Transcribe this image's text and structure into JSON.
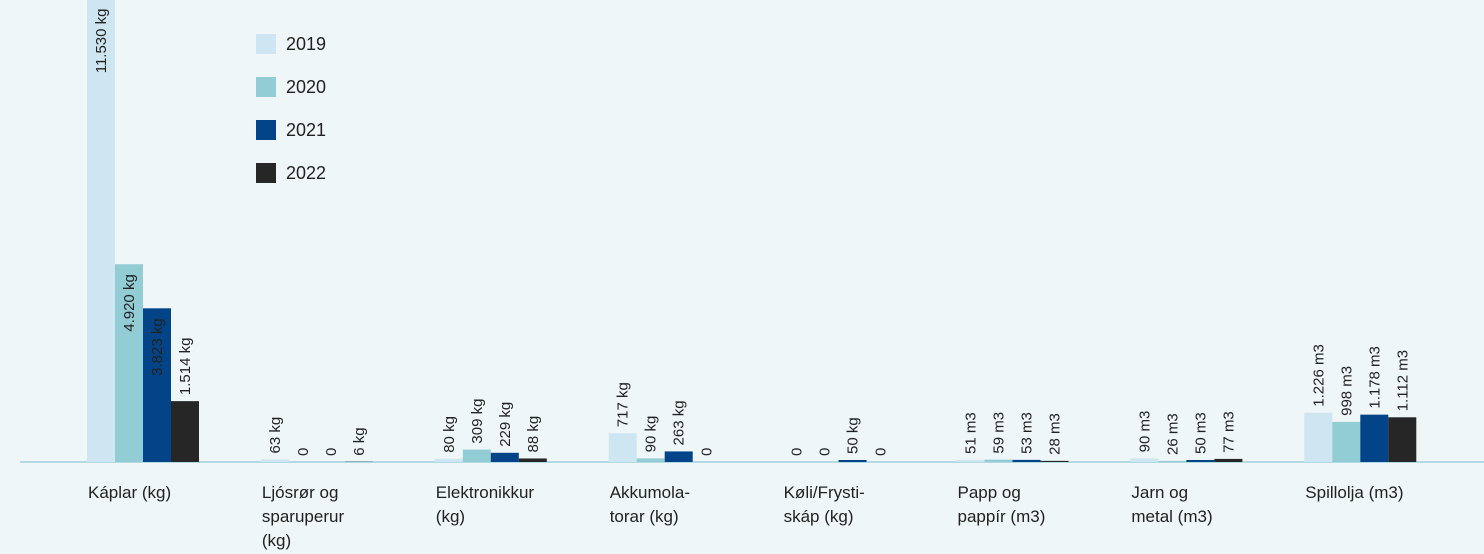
{
  "chart_data": {
    "type": "bar",
    "categories": [
      "Káplar (kg)",
      "Ljósrør og\nsparuperur\n(kg)",
      "Elektronikkur\n(kg)",
      "Akkumola-\ntorar (kg)",
      "Køli/Frysti-\nskáp (kg)",
      "Papp og\npappír (m3)",
      "Jarn og\nmetal (m3)",
      "Spillolja (m3)"
    ],
    "series": [
      {
        "name": "2019",
        "color": "#cde6f2",
        "values": [
          11530,
          63,
          80,
          717,
          0,
          51,
          90,
          1226
        ],
        "value_labels": [
          "11.530 kg",
          "63 kg",
          "80 kg",
          "717 kg",
          "0",
          "51 m3",
          "90 m3",
          "1.226 m3"
        ]
      },
      {
        "name": "2020",
        "color": "#92cdd6",
        "values": [
          4920,
          0,
          309,
          90,
          0,
          59,
          26,
          998
        ],
        "value_labels": [
          "4.920 kg",
          "0",
          "309 kg",
          "90 kg",
          "0",
          "59 m3",
          "26 m3",
          "998 m3"
        ]
      },
      {
        "name": "2021",
        "color": "#034488",
        "values": [
          3823,
          0,
          229,
          263,
          50,
          53,
          50,
          1178
        ],
        "value_labels": [
          "3.823 kg",
          "0",
          "229 kg",
          "263 kg",
          "50 kg",
          "53 m3",
          "50 m3",
          "1.178 m3"
        ]
      },
      {
        "name": "2022",
        "color": "#262626",
        "values": [
          1514,
          6,
          88,
          0,
          0,
          28,
          77,
          1112
        ],
        "value_labels": [
          "1.514 kg",
          "6 kg",
          "88 kg",
          "0",
          "0",
          "28 m3",
          "77 m3",
          "1.112 m3"
        ]
      }
    ],
    "legend": "top-left"
  }
}
